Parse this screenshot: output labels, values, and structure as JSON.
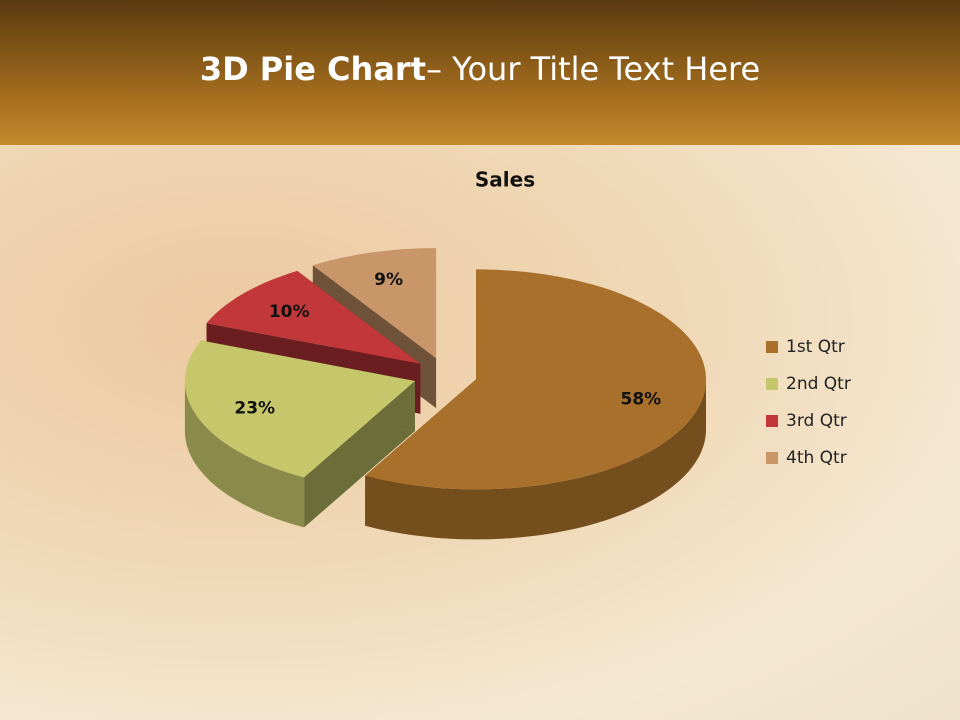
{
  "slide": {
    "title": [
      "3D Pie Chart",
      "– Your Title Text Here"
    ]
  },
  "chart_data": {
    "type": "pie",
    "title": "Sales",
    "categories": [
      "1st Qtr",
      "2nd Qtr",
      "3rd Qtr",
      "4th Qtr"
    ],
    "values": [
      58,
      23,
      10,
      9
    ],
    "value_labels": [
      "58%",
      "23%",
      "10%",
      "9%"
    ],
    "colors": [
      "#a8702a",
      "#c6c66a",
      "#c2383a",
      "#c9966a"
    ],
    "legend": "right"
  }
}
